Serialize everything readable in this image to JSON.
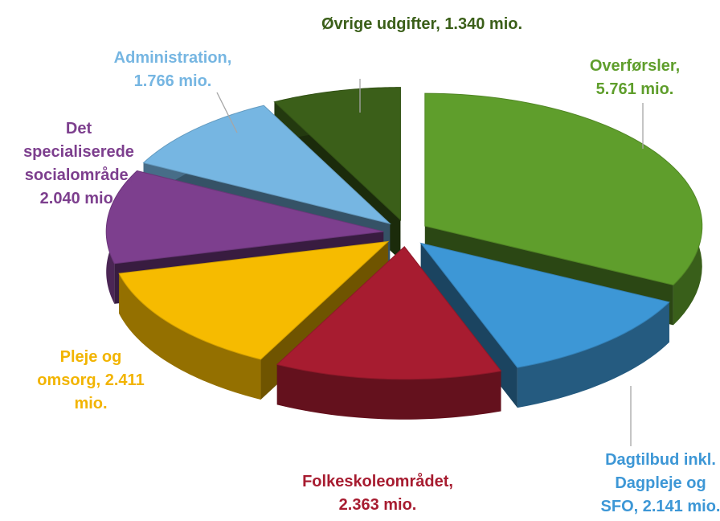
{
  "chart_data": {
    "type": "pie3d",
    "values": [
      5761,
      2141,
      2363,
      2411,
      2040,
      1766,
      1340
    ],
    "value_labels": [
      "Overførsler, 5.761 mio.",
      "Dagtilbud inkl. Dagpleje og SFO, 2.141 mio.",
      "Folkeskoleområdet, 2.363 mio.",
      "Pleje og omsorg, 2.411 mio.",
      "Det specialiserede socialområde, 2.040 mio.",
      "Administration, 1.766 mio.",
      "Øvrige udgifter, 1.340 mio."
    ],
    "colors": [
      "#5f9e2c",
      "#3d97d6",
      "#a71c30",
      "#f6bb00",
      "#7d3f8e",
      "#76b6e2",
      "#3b5f19"
    ]
  }
}
